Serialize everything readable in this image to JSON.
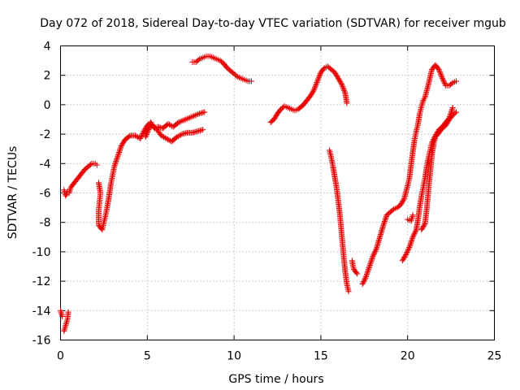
{
  "chart_data": {
    "type": "scatter",
    "title": "Day 072 of 2018, Sidereal Day-to-day VTEC variation (SDTVAR) for receiver mgub",
    "xlabel": "GPS time / hours",
    "ylabel": "SDTVAR / TECUs",
    "xlim": [
      0,
      25
    ],
    "ylim": [
      -16,
      4
    ],
    "x_ticks": [
      0,
      5,
      10,
      15,
      20,
      25
    ],
    "y_ticks": [
      -16,
      -14,
      -12,
      -10,
      -8,
      -6,
      -4,
      -2,
      0,
      2,
      4
    ],
    "grid": true,
    "marker": "+",
    "color": "#e60000",
    "series": [
      {
        "segments": [
          [
            [
              0.0,
              -14.0
            ],
            [
              0.1,
              -14.4
            ]
          ],
          [
            [
              0.2,
              -15.4
            ],
            [
              0.3,
              -15.0
            ],
            [
              0.4,
              -14.6
            ],
            [
              0.45,
              -14.1
            ]
          ],
          [
            [
              0.2,
              -5.8
            ],
            [
              0.3,
              -6.2
            ],
            [
              0.4,
              -5.9
            ],
            [
              0.5,
              -6.0
            ],
            [
              0.6,
              -5.6
            ],
            [
              0.8,
              -5.3
            ],
            [
              1.0,
              -5.0
            ],
            [
              1.2,
              -4.7
            ],
            [
              1.4,
              -4.4
            ],
            [
              1.6,
              -4.2
            ],
            [
              1.8,
              -4.0
            ],
            [
              2.0,
              -4.0
            ],
            [
              2.1,
              -4.1
            ]
          ],
          [
            [
              2.2,
              -5.3
            ],
            [
              2.3,
              -6.0
            ],
            [
              2.25,
              -6.6
            ],
            [
              2.2,
              -7.2
            ],
            [
              2.2,
              -8.2
            ],
            [
              2.4,
              -8.5
            ],
            [
              2.5,
              -8.0
            ],
            [
              2.6,
              -7.5
            ],
            [
              2.7,
              -6.9
            ],
            [
              2.8,
              -6.2
            ],
            [
              2.9,
              -5.4
            ],
            [
              3.0,
              -4.8
            ],
            [
              3.1,
              -4.2
            ],
            [
              3.3,
              -3.5
            ],
            [
              3.5,
              -2.8
            ],
            [
              3.7,
              -2.4
            ],
            [
              4.0,
              -2.1
            ],
            [
              4.3,
              -2.1
            ],
            [
              4.6,
              -2.3
            ],
            [
              4.8,
              -1.8
            ],
            [
              5.0,
              -1.4
            ],
            [
              5.2,
              -1.2
            ],
            [
              5.4,
              -1.6
            ],
            [
              5.6,
              -1.5
            ],
            [
              5.9,
              -1.6
            ],
            [
              6.2,
              -1.3
            ],
            [
              6.5,
              -1.5
            ],
            [
              6.8,
              -1.2
            ],
            [
              7.2,
              -1.0
            ],
            [
              7.6,
              -0.8
            ],
            [
              8.0,
              -0.6
            ],
            [
              8.3,
              -0.5
            ]
          ],
          [
            [
              4.9,
              -2.2
            ],
            [
              5.1,
              -1.6
            ],
            [
              5.3,
              -1.4
            ],
            [
              5.5,
              -1.6
            ],
            [
              5.8,
              -2.1
            ],
            [
              6.1,
              -2.3
            ],
            [
              6.4,
              -2.5
            ],
            [
              6.7,
              -2.2
            ],
            [
              7.0,
              -2.0
            ],
            [
              7.3,
              -1.9
            ],
            [
              7.6,
              -1.9
            ],
            [
              7.9,
              -1.8
            ],
            [
              8.2,
              -1.7
            ]
          ],
          [
            [
              7.6,
              2.9
            ],
            [
              7.8,
              2.9
            ],
            [
              8.0,
              3.1
            ],
            [
              8.2,
              3.2
            ],
            [
              8.4,
              3.3
            ],
            [
              8.6,
              3.3
            ],
            [
              8.8,
              3.2
            ],
            [
              9.0,
              3.1
            ],
            [
              9.2,
              3.0
            ],
            [
              9.4,
              2.8
            ],
            [
              9.6,
              2.5
            ],
            [
              9.8,
              2.3
            ],
            [
              10.0,
              2.1
            ],
            [
              10.2,
              1.9
            ],
            [
              10.4,
              1.8
            ],
            [
              10.6,
              1.7
            ],
            [
              10.8,
              1.6
            ],
            [
              11.0,
              1.6
            ]
          ],
          [
            [
              12.1,
              -1.2
            ],
            [
              12.3,
              -1.0
            ],
            [
              12.5,
              -0.6
            ],
            [
              12.7,
              -0.3
            ],
            [
              12.9,
              -0.1
            ],
            [
              13.1,
              -0.2
            ],
            [
              13.3,
              -0.3
            ],
            [
              13.5,
              -0.4
            ],
            [
              13.7,
              -0.3
            ],
            [
              14.0,
              0.0
            ],
            [
              14.2,
              0.3
            ],
            [
              14.4,
              0.6
            ],
            [
              14.6,
              1.0
            ],
            [
              14.8,
              1.6
            ],
            [
              15.0,
              2.2
            ],
            [
              15.2,
              2.5
            ],
            [
              15.4,
              2.6
            ],
            [
              15.6,
              2.4
            ],
            [
              15.8,
              2.2
            ],
            [
              16.0,
              1.8
            ],
            [
              16.2,
              1.4
            ],
            [
              16.4,
              0.8
            ],
            [
              16.5,
              0.1
            ]
          ],
          [
            [
              15.5,
              -3.1
            ],
            [
              15.6,
              -3.6
            ],
            [
              15.7,
              -4.2
            ],
            [
              15.8,
              -4.9
            ],
            [
              15.9,
              -5.6
            ],
            [
              16.0,
              -6.5
            ],
            [
              16.1,
              -7.5
            ],
            [
              16.2,
              -8.8
            ],
            [
              16.3,
              -10.1
            ],
            [
              16.4,
              -11.3
            ],
            [
              16.5,
              -12.2
            ],
            [
              16.6,
              -12.7
            ]
          ],
          [
            [
              16.8,
              -10.6
            ],
            [
              16.9,
              -11.2
            ],
            [
              17.1,
              -11.5
            ]
          ],
          [
            [
              17.4,
              -12.2
            ],
            [
              17.6,
              -11.7
            ],
            [
              17.8,
              -11.0
            ],
            [
              18.0,
              -10.3
            ],
            [
              18.2,
              -9.8
            ],
            [
              18.4,
              -9.0
            ],
            [
              18.6,
              -8.2
            ],
            [
              18.8,
              -7.5
            ],
            [
              19.0,
              -7.3
            ],
            [
              19.2,
              -7.1
            ],
            [
              19.4,
              -7.0
            ],
            [
              19.6,
              -6.8
            ],
            [
              19.8,
              -6.4
            ],
            [
              20.0,
              -5.5
            ],
            [
              20.1,
              -5.0
            ],
            [
              20.2,
              -4.1
            ],
            [
              20.3,
              -3.2
            ],
            [
              20.4,
              -2.4
            ],
            [
              20.5,
              -1.8
            ],
            [
              20.6,
              -1.3
            ],
            [
              20.7,
              -0.6
            ],
            [
              20.8,
              -0.1
            ],
            [
              20.9,
              0.3
            ],
            [
              21.0,
              0.5
            ],
            [
              21.2,
              1.4
            ],
            [
              21.4,
              2.4
            ],
            [
              21.6,
              2.7
            ],
            [
              21.8,
              2.4
            ],
            [
              22.0,
              1.8
            ],
            [
              22.2,
              1.3
            ],
            [
              22.4,
              1.3
            ],
            [
              22.6,
              1.5
            ],
            [
              22.8,
              1.6
            ]
          ],
          [
            [
              19.7,
              -10.6
            ],
            [
              19.9,
              -10.2
            ],
            [
              20.1,
              -9.7
            ],
            [
              20.3,
              -9.0
            ],
            [
              20.5,
              -8.5
            ],
            [
              20.6,
              -7.8
            ],
            [
              20.7,
              -6.9
            ],
            [
              20.8,
              -6.2
            ],
            [
              20.9,
              -5.6
            ],
            [
              21.0,
              -5.0
            ],
            [
              21.1,
              -4.2
            ],
            [
              21.2,
              -3.6
            ],
            [
              21.3,
              -3.1
            ],
            [
              21.4,
              -2.6
            ],
            [
              21.6,
              -2.1
            ],
            [
              21.8,
              -1.7
            ],
            [
              22.0,
              -1.5
            ],
            [
              22.2,
              -1.2
            ],
            [
              22.4,
              -0.9
            ],
            [
              22.6,
              -0.2
            ]
          ],
          [
            [
              20.0,
              -7.8
            ],
            [
              20.2,
              -7.9
            ],
            [
              20.3,
              -7.5
            ]
          ],
          [
            [
              20.8,
              -8.5
            ],
            [
              21.0,
              -8.1
            ],
            [
              21.1,
              -7.1
            ],
            [
              21.2,
              -5.8
            ],
            [
              21.3,
              -4.6
            ],
            [
              21.4,
              -3.4
            ],
            [
              21.5,
              -2.7
            ],
            [
              21.6,
              -2.2
            ],
            [
              21.8,
              -1.9
            ],
            [
              22.0,
              -1.6
            ],
            [
              22.2,
              -1.4
            ],
            [
              22.4,
              -1.0
            ],
            [
              22.6,
              -0.7
            ],
            [
              22.8,
              -0.5
            ]
          ]
        ]
      }
    ]
  }
}
